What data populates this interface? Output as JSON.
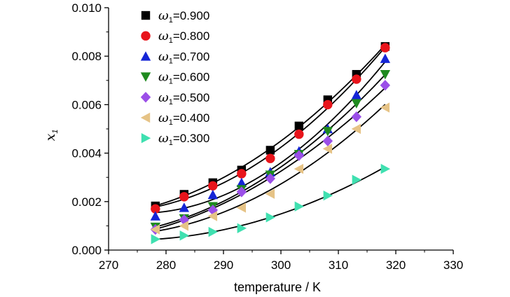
{
  "chart_data": {
    "type": "scatter",
    "xlabel": "temperature / K",
    "ylabel": "x",
    "ylabel_subscript": "1",
    "xlim": [
      270,
      330
    ],
    "ylim": [
      0.0,
      0.01
    ],
    "xticks": [
      "270",
      "280",
      "290",
      "300",
      "310",
      "320",
      "330"
    ],
    "yticks": [
      "0.000",
      "0.002",
      "0.004",
      "0.006",
      "0.008",
      "0.010"
    ],
    "grid": false,
    "legend_position": "top-left",
    "fit_lines": true,
    "x": [
      278.15,
      283.15,
      288.15,
      293.15,
      298.15,
      303.15,
      308.15,
      313.15,
      318.15
    ],
    "series": [
      {
        "name": "ω1=0.900",
        "symbol": "ω",
        "subscript": "1",
        "value": "=0.900",
        "marker": "square",
        "color": "#000000",
        "values": [
          0.00182,
          0.0023,
          0.00278,
          0.0033,
          0.00412,
          0.00512,
          0.0062,
          0.00725,
          0.0084
        ]
      },
      {
        "name": "ω1=0.800",
        "symbol": "ω",
        "subscript": "1",
        "value": "=0.800",
        "marker": "circle",
        "color": "#e8141b",
        "values": [
          0.0017,
          0.0022,
          0.00265,
          0.00315,
          0.00378,
          0.00478,
          0.006,
          0.00705,
          0.00835
        ]
      },
      {
        "name": "ω1=0.700",
        "symbol": "ω",
        "subscript": "1",
        "value": "=0.700",
        "marker": "triangle-up",
        "color": "#1525d6",
        "values": [
          0.0014,
          0.00175,
          0.00228,
          0.00278,
          0.00322,
          0.00408,
          0.005,
          0.0064,
          0.0079
        ]
      },
      {
        "name": "ω1=0.600",
        "symbol": "ω",
        "subscript": "1",
        "value": "=0.600",
        "marker": "triangle-down",
        "color": "#1f8a1f",
        "values": [
          0.00095,
          0.0013,
          0.0018,
          0.0025,
          0.0031,
          0.00395,
          0.0049,
          0.00605,
          0.00725
        ]
      },
      {
        "name": "ω1=0.500",
        "symbol": "ω",
        "subscript": "1",
        "value": "=0.500",
        "marker": "diamond",
        "color": "#9b4fe8",
        "values": [
          0.00085,
          0.00125,
          0.00165,
          0.0024,
          0.00295,
          0.0039,
          0.0045,
          0.0055,
          0.0068
        ]
      },
      {
        "name": "ω1=0.400",
        "symbol": "ω",
        "subscript": "1",
        "value": "=0.400",
        "marker": "triangle-left",
        "color": "#e6c386",
        "values": [
          0.00085,
          0.001,
          0.0014,
          0.00175,
          0.00232,
          0.00335,
          0.00418,
          0.005,
          0.00588
        ]
      },
      {
        "name": "ω1=0.300",
        "symbol": "ω",
        "subscript": "1",
        "value": "=0.300",
        "marker": "triangle-right",
        "color": "#3fe0b0",
        "values": [
          0.00045,
          0.0006,
          0.00075,
          0.0009,
          0.00135,
          0.0018,
          0.00225,
          0.0029,
          0.00335
        ]
      }
    ]
  }
}
